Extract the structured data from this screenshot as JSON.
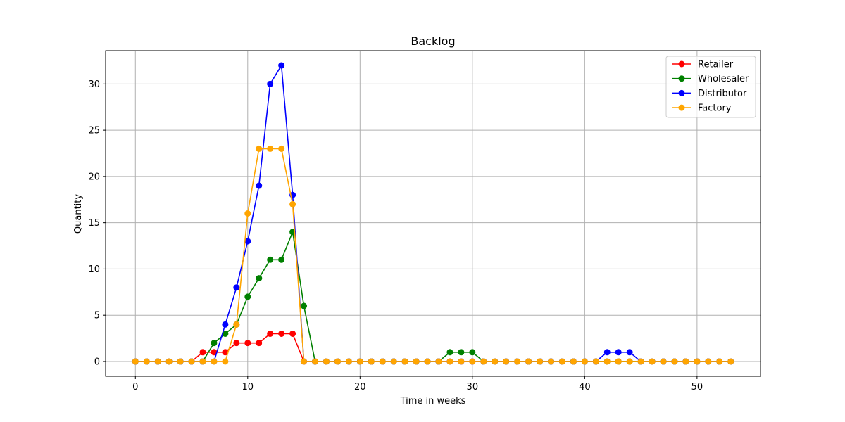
{
  "chart_data": {
    "type": "line",
    "title": "Backlog",
    "xlabel": "Time in weeks",
    "ylabel": "Quantity",
    "xlim": [
      -2.65,
      55.65
    ],
    "ylim": [
      -1.6,
      33.6
    ],
    "x_ticks": [
      0,
      10,
      20,
      30,
      40,
      50
    ],
    "y_ticks": [
      0,
      5,
      10,
      15,
      20,
      25,
      30
    ],
    "grid": true,
    "legend_position": "top-right",
    "x": [
      0,
      1,
      2,
      3,
      4,
      5,
      6,
      7,
      8,
      9,
      10,
      11,
      12,
      13,
      14,
      15,
      16,
      17,
      18,
      19,
      20,
      21,
      22,
      23,
      24,
      25,
      26,
      27,
      28,
      29,
      30,
      31,
      32,
      33,
      34,
      35,
      36,
      37,
      38,
      39,
      40,
      41,
      42,
      43,
      44,
      45,
      46,
      47,
      48,
      49,
      50,
      51,
      52,
      53
    ],
    "series": [
      {
        "name": "Retailer",
        "color": "#ff0000",
        "values": [
          0,
          0,
          0,
          0,
          0,
          0,
          1,
          1,
          1,
          2,
          2,
          2,
          3,
          3,
          3,
          0,
          0,
          0,
          0,
          0,
          0,
          0,
          0,
          0,
          0,
          0,
          0,
          0,
          0,
          0,
          0,
          0,
          0,
          0,
          0,
          0,
          0,
          0,
          0,
          0,
          0,
          0,
          0,
          0,
          0,
          0,
          0,
          0,
          0,
          0,
          0,
          0,
          0,
          0
        ]
      },
      {
        "name": "Wholesaler",
        "color": "#008000",
        "values": [
          0,
          0,
          0,
          0,
          0,
          0,
          0,
          2,
          3,
          4,
          7,
          9,
          11,
          11,
          14,
          6,
          0,
          0,
          0,
          0,
          0,
          0,
          0,
          0,
          0,
          0,
          0,
          0,
          1,
          1,
          1,
          0,
          0,
          0,
          0,
          0,
          0,
          0,
          0,
          0,
          0,
          0,
          0,
          0,
          0,
          0,
          0,
          0,
          0,
          0,
          0,
          0,
          0,
          0
        ]
      },
      {
        "name": "Distributor",
        "color": "#0000ff",
        "values": [
          0,
          0,
          0,
          0,
          0,
          0,
          0,
          0,
          4,
          8,
          13,
          19,
          30,
          32,
          18,
          0,
          0,
          0,
          0,
          0,
          0,
          0,
          0,
          0,
          0,
          0,
          0,
          0,
          0,
          0,
          0,
          0,
          0,
          0,
          0,
          0,
          0,
          0,
          0,
          0,
          0,
          0,
          1,
          1,
          1,
          0,
          0,
          0,
          0,
          0,
          0,
          0,
          0,
          0
        ]
      },
      {
        "name": "Factory",
        "color": "#ffa500",
        "values": [
          0,
          0,
          0,
          0,
          0,
          0,
          0,
          0,
          0,
          4,
          16,
          23,
          23,
          23,
          17,
          0,
          0,
          0,
          0,
          0,
          0,
          0,
          0,
          0,
          0,
          0,
          0,
          0,
          0,
          0,
          0,
          0,
          0,
          0,
          0,
          0,
          0,
          0,
          0,
          0,
          0,
          0,
          0,
          0,
          0,
          0,
          0,
          0,
          0,
          0,
          0,
          0,
          0,
          0
        ]
      }
    ]
  }
}
